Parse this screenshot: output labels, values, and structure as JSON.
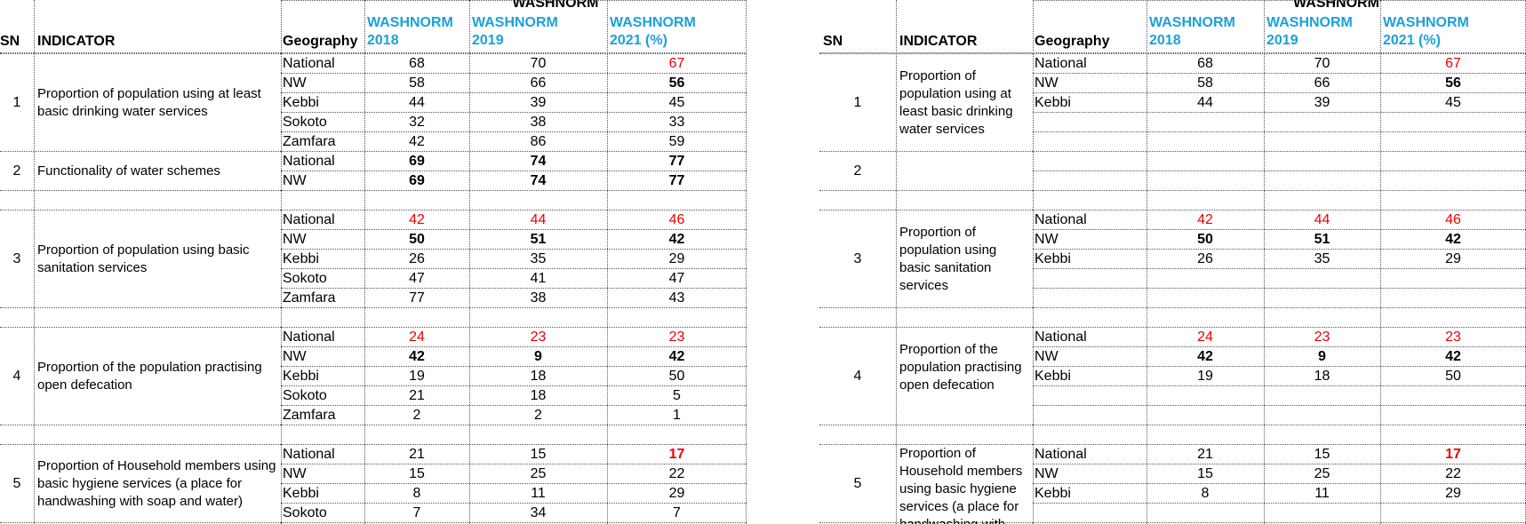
{
  "header": {
    "group": "WASHNORM",
    "sn": "SN",
    "indicator": "INDICATOR",
    "geography": "Geography",
    "col2018_a": "WASHNORM",
    "col2018_b": "2018",
    "col2019_a": "WASHNORM",
    "col2019_b": "2019",
    "col2021_a": "WASHNORM",
    "col2021_b": "2021 (%)"
  },
  "left": {
    "indicators": [
      {
        "sn": "1",
        "text": "Proportion of population using at least basic drinking water services"
      },
      {
        "sn": "2",
        "text": "Functionality of water schemes"
      },
      {
        "sn": "3",
        "text": "Proportion of population using  basic sanitation services"
      },
      {
        "sn": "4",
        "text": "Proportion of the population practising open defecation"
      },
      {
        "sn": "5",
        "text": "Proportion of Household members using basic hygiene services (a place for handwashing with soap and water)"
      }
    ],
    "rows": [
      {
        "geo": "National",
        "v2018": "68",
        "v2019": "70",
        "v2021": "67"
      },
      {
        "geo": "NW",
        "v2018": "58",
        "v2019": "66",
        "v2021": "56"
      },
      {
        "geo": "Kebbi",
        "v2018": "44",
        "v2019": "39",
        "v2021": "45"
      },
      {
        "geo": "Sokoto",
        "v2018": "32",
        "v2019": "38",
        "v2021": "33"
      },
      {
        "geo": "Zamfara",
        "v2018": "42",
        "v2019": "86",
        "v2021": "59"
      },
      {
        "geo": "National",
        "v2018": "69",
        "v2019": "74",
        "v2021": "77"
      },
      {
        "geo": "NW",
        "v2018": "69",
        "v2019": "74",
        "v2021": "77"
      },
      {
        "geo": "",
        "v2018": "",
        "v2019": "",
        "v2021": ""
      },
      {
        "geo": "National",
        "v2018": "42",
        "v2019": "44",
        "v2021": "46"
      },
      {
        "geo": "NW",
        "v2018": "50",
        "v2019": "51",
        "v2021": "42"
      },
      {
        "geo": "Kebbi",
        "v2018": "26",
        "v2019": "35",
        "v2021": "29"
      },
      {
        "geo": "Sokoto",
        "v2018": "47",
        "v2019": "41",
        "v2021": "47"
      },
      {
        "geo": "Zamfara",
        "v2018": "77",
        "v2019": "38",
        "v2021": "43"
      },
      {
        "geo": "",
        "v2018": "",
        "v2019": "",
        "v2021": ""
      },
      {
        "geo": "National",
        "v2018": "24",
        "v2019": "23",
        "v2021": "23"
      },
      {
        "geo": "NW",
        "v2018": "42",
        "v2019": "9",
        "v2021": "42"
      },
      {
        "geo": "Kebbi",
        "v2018": "19",
        "v2019": "18",
        "v2021": "50"
      },
      {
        "geo": "Sokoto",
        "v2018": "21",
        "v2019": "18",
        "v2021": "5"
      },
      {
        "geo": "Zamfara",
        "v2018": "2",
        "v2019": "2",
        "v2021": "1"
      },
      {
        "geo": "",
        "v2018": "",
        "v2019": "",
        "v2021": ""
      },
      {
        "geo": "National",
        "v2018": "21",
        "v2019": "15",
        "v2021": "17"
      },
      {
        "geo": "NW",
        "v2018": "15",
        "v2019": "25",
        "v2021": "22"
      },
      {
        "geo": "Kebbi",
        "v2018": "8",
        "v2019": "11",
        "v2021": "29"
      },
      {
        "geo": "Sokoto",
        "v2018": "7",
        "v2019": "34",
        "v2021": "7"
      }
    ]
  },
  "right": {
    "indicators": [
      {
        "sn": "1",
        "text": "Proportion of population using at least basic drinking water services"
      },
      {
        "sn": "2",
        "text": ""
      },
      {
        "sn": "3",
        "text": "Proportion of population using basic sanitation services"
      },
      {
        "sn": "4",
        "text": "Proportion of the population practising open defecation"
      },
      {
        "sn": "5",
        "text": "Proportion of Household members using basic hygiene services (a place for handwashing with"
      }
    ],
    "rows": [
      {
        "geo": "National",
        "v2018": "68",
        "v2019": "70",
        "v2021": "67"
      },
      {
        "geo": "NW",
        "v2018": "58",
        "v2019": "66",
        "v2021": "56"
      },
      {
        "geo": "Kebbi",
        "v2018": "44",
        "v2019": "39",
        "v2021": "45"
      },
      {
        "geo": "",
        "v2018": "",
        "v2019": "",
        "v2021": ""
      },
      {
        "geo": "",
        "v2018": "",
        "v2019": "",
        "v2021": ""
      },
      {
        "geo": "",
        "v2018": "",
        "v2019": "",
        "v2021": ""
      },
      {
        "geo": "",
        "v2018": "",
        "v2019": "",
        "v2021": ""
      },
      {
        "geo": "",
        "v2018": "",
        "v2019": "",
        "v2021": ""
      },
      {
        "geo": "National",
        "v2018": "42",
        "v2019": "44",
        "v2021": "46"
      },
      {
        "geo": "NW",
        "v2018": "50",
        "v2019": "51",
        "v2021": "42"
      },
      {
        "geo": "Kebbi",
        "v2018": "26",
        "v2019": "35",
        "v2021": "29"
      },
      {
        "geo": "",
        "v2018": "",
        "v2019": "",
        "v2021": ""
      },
      {
        "geo": "",
        "v2018": "",
        "v2019": "",
        "v2021": ""
      },
      {
        "geo": "",
        "v2018": "",
        "v2019": "",
        "v2021": ""
      },
      {
        "geo": "National",
        "v2018": "24",
        "v2019": "23",
        "v2021": "23"
      },
      {
        "geo": "NW",
        "v2018": "42",
        "v2019": "9",
        "v2021": "42"
      },
      {
        "geo": "Kebbi",
        "v2018": "19",
        "v2019": "18",
        "v2021": "50"
      },
      {
        "geo": "",
        "v2018": "",
        "v2019": "",
        "v2021": ""
      },
      {
        "geo": "",
        "v2018": "",
        "v2019": "",
        "v2021": ""
      },
      {
        "geo": "",
        "v2018": "",
        "v2019": "",
        "v2021": ""
      },
      {
        "geo": "National",
        "v2018": "21",
        "v2019": "15",
        "v2021": "17"
      },
      {
        "geo": "NW",
        "v2018": "15",
        "v2019": "25",
        "v2021": "22"
      },
      {
        "geo": "Kebbi",
        "v2018": "8",
        "v2019": "11",
        "v2021": "29"
      },
      {
        "geo": "",
        "v2018": "",
        "v2019": "",
        "v2021": ""
      }
    ]
  },
  "styles": {
    "header_blue": "#1aa1dc",
    "highlight_red": "#ee0000",
    "red_cells": [
      "0.v2021",
      "8.v2018",
      "8.v2019",
      "8.v2021",
      "14.v2018",
      "14.v2019",
      "14.v2021",
      "20.v2021"
    ],
    "bold_cells": [
      "1.v2021",
      "5.v2018",
      "5.v2019",
      "5.v2021",
      "6.v2018",
      "6.v2019",
      "6.v2021",
      "9.v2018",
      "9.v2019",
      "9.v2021",
      "15.v2018",
      "15.v2019",
      "15.v2021",
      "20.v2021"
    ]
  }
}
